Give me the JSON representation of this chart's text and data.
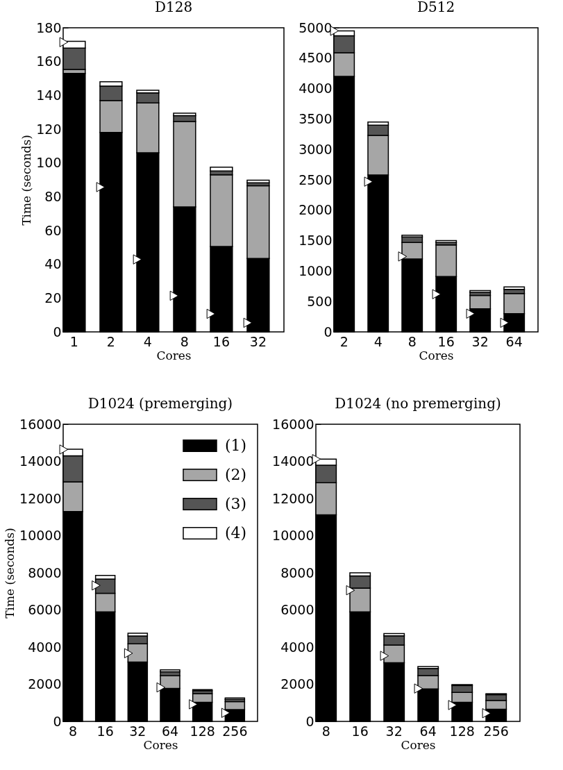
{
  "chart_data": [
    {
      "type": "bar",
      "stacked": true,
      "title": "D128",
      "xlabel": "Cores",
      "ylabel": "Time (seconds)",
      "categories": [
        "1",
        "2",
        "4",
        "8",
        "16",
        "32"
      ],
      "ylim": [
        0,
        180
      ],
      "yticks": [
        0,
        20,
        40,
        60,
        80,
        100,
        120,
        140,
        160,
        180
      ],
      "grid": false,
      "legend": false,
      "series": [
        {
          "color": "#000000",
          "values": [
            153,
            118,
            106,
            74,
            50.5,
            43.5
          ]
        },
        {
          "color": "#a6a6a6",
          "values": [
            2.3,
            19,
            29.5,
            50.5,
            42.5,
            43
          ]
        },
        {
          "color": "#555555",
          "values": [
            12.7,
            8.5,
            6,
            3.5,
            2.2,
            1.8
          ]
        },
        {
          "color": "#ffffff",
          "values": [
            4,
            2.5,
            1.5,
            1.5,
            2.3,
            1.5
          ]
        },
        {
          "type": "scatter",
          "marker": "triangle",
          "color": "#ffffff",
          "x": [
            "1",
            "2",
            "4",
            "8",
            "16",
            "32"
          ],
          "values": [
            171.5,
            85.7,
            42.9,
            21.4,
            10.7,
            5.4
          ]
        }
      ]
    },
    {
      "type": "bar",
      "stacked": true,
      "title": "D512",
      "xlabel": "Cores",
      "categories": [
        "2",
        "4",
        "8",
        "16",
        "32",
        "64"
      ],
      "ylim": [
        0,
        5000
      ],
      "yticks": [
        0,
        500,
        1000,
        1500,
        2000,
        2500,
        3000,
        3500,
        4000,
        4500,
        5000
      ],
      "grid": false,
      "legend": false,
      "series": [
        {
          "color": "#000000",
          "values": [
            4200,
            2580,
            1200,
            910,
            380,
            300
          ]
        },
        {
          "color": "#a6a6a6",
          "values": [
            390,
            650,
            270,
            520,
            220,
            330
          ]
        },
        {
          "color": "#555555",
          "values": [
            280,
            170,
            90,
            40,
            50,
            70
          ]
        },
        {
          "color": "#ffffff",
          "values": [
            80,
            50,
            30,
            30,
            30,
            40
          ]
        },
        {
          "type": "scatter",
          "marker": "triangle",
          "color": "#ffffff",
          "x": [
            "2",
            "4",
            "8",
            "16",
            "32",
            "64"
          ],
          "values": [
            4950,
            2470,
            1240,
            620,
            300,
            150
          ]
        }
      ]
    },
    {
      "type": "bar",
      "stacked": true,
      "title": "D1024 (premerging)",
      "xlabel": "Cores",
      "ylabel": "Time (seconds)",
      "categories": [
        "8",
        "16",
        "32",
        "64",
        "128",
        "256"
      ],
      "ylim": [
        0,
        16000
      ],
      "yticks": [
        0,
        2000,
        4000,
        6000,
        8000,
        10000,
        12000,
        14000,
        16000
      ],
      "grid": false,
      "legend": "top right",
      "series": [
        {
          "name": "(1)",
          "color": "#000000",
          "values": [
            11300,
            5900,
            3200,
            1780,
            1030,
            640
          ]
        },
        {
          "name": "(2)",
          "color": "#a6a6a6",
          "values": [
            1600,
            1000,
            980,
            680,
            470,
            430
          ]
        },
        {
          "name": "(3)",
          "color": "#555555",
          "values": [
            1400,
            760,
            420,
            210,
            150,
            120
          ]
        },
        {
          "name": "(4)",
          "color": "#ffffff",
          "values": [
            350,
            200,
            150,
            110,
            60,
            70
          ]
        },
        {
          "type": "scatter",
          "marker": "triangle",
          "color": "#ffffff",
          "x": [
            "8",
            "16",
            "32",
            "64",
            "128",
            "256"
          ],
          "values": [
            14640,
            7320,
            3670,
            1830,
            920,
            460
          ]
        }
      ]
    },
    {
      "type": "bar",
      "stacked": true,
      "title": "D1024 (no premerging)",
      "xlabel": "Cores",
      "categories": [
        "8",
        "16",
        "32",
        "64",
        "128",
        "256"
      ],
      "ylim": [
        0,
        16000
      ],
      "yticks": [
        0,
        2000,
        4000,
        6000,
        8000,
        10000,
        12000,
        14000,
        16000
      ],
      "grid": false,
      "legend": false,
      "series": [
        {
          "color": "#000000",
          "values": [
            11120,
            5900,
            3160,
            1750,
            1030,
            650
          ]
        },
        {
          "color": "#a6a6a6",
          "values": [
            1730,
            1280,
            950,
            720,
            530,
            480
          ]
        },
        {
          "color": "#555555",
          "values": [
            940,
            650,
            500,
            380,
            370,
            310
          ]
        },
        {
          "color": "#ffffff",
          "values": [
            330,
            170,
            120,
            100,
            50,
            50
          ]
        },
        {
          "type": "scatter",
          "marker": "triangle",
          "color": "#ffffff",
          "x": [
            "8",
            "16",
            "32",
            "64",
            "128",
            "256"
          ],
          "values": [
            14120,
            7060,
            3530,
            1770,
            880,
            440
          ]
        }
      ]
    }
  ]
}
